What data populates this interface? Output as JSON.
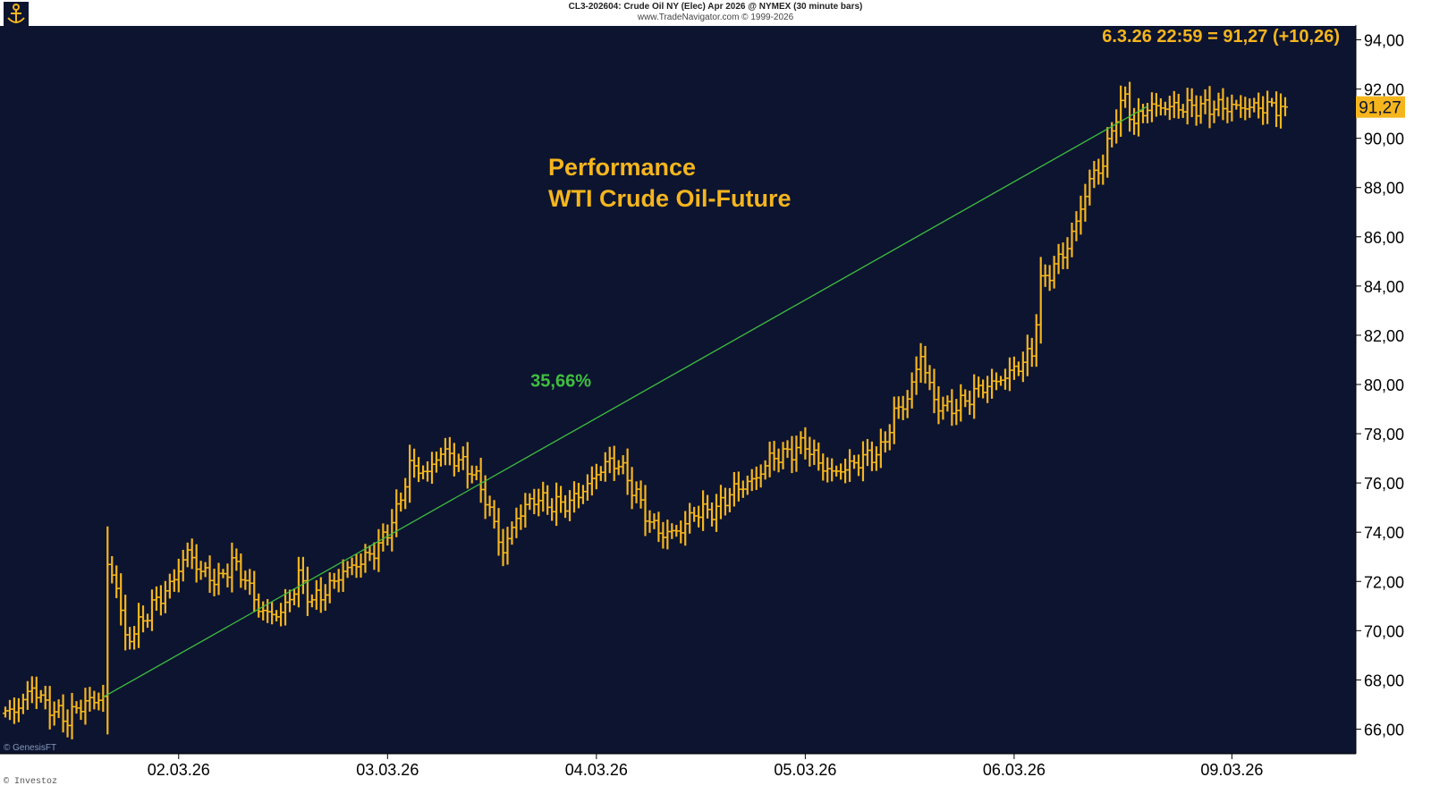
{
  "header": {
    "line1": "CL3-202604:  Crude Oil NY (Elec) Apr 2026 @ NYMEX  (30 minute bars)",
    "line2": "www.TradeNavigator.com © 1999-2026"
  },
  "watermark": "© GenesisFT",
  "footer_left": "© Investoz",
  "colors": {
    "background": "#0c1430",
    "bars": "#f5b51d",
    "trendline": "#3fbf3f",
    "axis_text": "#000000",
    "price_tag": "#f5b51d"
  },
  "chart_data": {
    "type": "ohlc",
    "title": "Performance",
    "subtitle": "WTI Crude Oil-Future",
    "info_label": "6.3.26 22:59 = 91,27 (+10,26)",
    "last_price_label": "91,27",
    "last_price": 91.27,
    "ylim": [
      65.0,
      94.6
    ],
    "y_ticks": [
      {
        "v": 66,
        "label": "66,00"
      },
      {
        "v": 68,
        "label": "68,00"
      },
      {
        "v": 70,
        "label": "70,00"
      },
      {
        "v": 72,
        "label": "72,00"
      },
      {
        "v": 74,
        "label": "74,00"
      },
      {
        "v": 76,
        "label": "76,00"
      },
      {
        "v": 78,
        "label": "78,00"
      },
      {
        "v": 80,
        "label": "80,00"
      },
      {
        "v": 82,
        "label": "82,00"
      },
      {
        "v": 84,
        "label": "84,00"
      },
      {
        "v": 86,
        "label": "86,00"
      },
      {
        "v": 88,
        "label": "88,00"
      },
      {
        "v": 90,
        "label": "90,00"
      },
      {
        "v": 92,
        "label": "92,00"
      },
      {
        "v": 94,
        "label": "94,00"
      }
    ],
    "x_axis": {
      "unit": "30-minute bars",
      "bars_visible": 289,
      "ticks": [
        {
          "bar": 39,
          "label": "02.03.26"
        },
        {
          "bar": 86,
          "label": "03.03.26"
        },
        {
          "bar": 133,
          "label": "04.03.26"
        },
        {
          "bar": 180,
          "label": "05.03.26"
        },
        {
          "bar": 227,
          "label": "06.03.26"
        },
        {
          "bar": 276,
          "label": "09.03.26"
        }
      ]
    },
    "trendline": {
      "label": "35,66%",
      "label_bar": 125,
      "label_price": 79.9,
      "start": {
        "bar": 22,
        "price": 67.3
      },
      "end": {
        "bar": 257,
        "price": 91.3
      }
    },
    "keypoints": [
      {
        "bar": 0,
        "price": 66.6
      },
      {
        "bar": 3,
        "price": 66.9
      },
      {
        "bar": 6,
        "price": 67.7
      },
      {
        "bar": 9,
        "price": 67.0
      },
      {
        "bar": 12,
        "price": 66.6
      },
      {
        "bar": 14,
        "price": 66.4
      },
      {
        "bar": 17,
        "price": 67.0
      },
      {
        "bar": 22,
        "price": 67.3
      },
      {
        "bar": 23,
        "price": 72.6
      },
      {
        "bar": 25,
        "price": 71.9
      },
      {
        "bar": 27,
        "price": 69.6
      },
      {
        "bar": 30,
        "price": 70.2
      },
      {
        "bar": 33,
        "price": 71.0
      },
      {
        "bar": 37,
        "price": 71.8
      },
      {
        "bar": 41,
        "price": 73.2
      },
      {
        "bar": 44,
        "price": 72.4
      },
      {
        "bar": 48,
        "price": 72.0
      },
      {
        "bar": 51,
        "price": 72.8
      },
      {
        "bar": 54,
        "price": 72.1
      },
      {
        "bar": 57,
        "price": 70.9
      },
      {
        "bar": 60,
        "price": 70.6
      },
      {
        "bar": 63,
        "price": 70.9
      },
      {
        "bar": 66,
        "price": 72.2
      },
      {
        "bar": 69,
        "price": 71.2
      },
      {
        "bar": 72,
        "price": 71.6
      },
      {
        "bar": 76,
        "price": 72.4
      },
      {
        "bar": 80,
        "price": 72.8
      },
      {
        "bar": 84,
        "price": 73.4
      },
      {
        "bar": 88,
        "price": 74.8
      },
      {
        "bar": 91,
        "price": 76.7
      },
      {
        "bar": 95,
        "price": 76.4
      },
      {
        "bar": 98,
        "price": 77.3
      },
      {
        "bar": 101,
        "price": 77.0
      },
      {
        "bar": 105,
        "price": 76.5
      },
      {
        "bar": 108,
        "price": 75.4
      },
      {
        "bar": 112,
        "price": 73.2
      },
      {
        "bar": 115,
        "price": 74.6
      },
      {
        "bar": 119,
        "price": 75.4
      },
      {
        "bar": 123,
        "price": 75.1
      },
      {
        "bar": 127,
        "price": 75.2
      },
      {
        "bar": 131,
        "price": 75.9
      },
      {
        "bar": 135,
        "price": 76.8
      },
      {
        "bar": 138,
        "price": 76.8
      },
      {
        "bar": 142,
        "price": 75.5
      },
      {
        "bar": 145,
        "price": 74.4
      },
      {
        "bar": 148,
        "price": 73.9
      },
      {
        "bar": 152,
        "price": 74.1
      },
      {
        "bar": 155,
        "price": 74.8
      },
      {
        "bar": 160,
        "price": 74.9
      },
      {
        "bar": 163,
        "price": 75.6
      },
      {
        "bar": 166,
        "price": 75.9
      },
      {
        "bar": 169,
        "price": 76.2
      },
      {
        "bar": 172,
        "price": 77.0
      },
      {
        "bar": 176,
        "price": 77.2
      },
      {
        "bar": 180,
        "price": 77.6
      },
      {
        "bar": 183,
        "price": 76.8
      },
      {
        "bar": 186,
        "price": 76.4
      },
      {
        "bar": 189,
        "price": 76.6
      },
      {
        "bar": 193,
        "price": 77.0
      },
      {
        "bar": 197,
        "price": 77.3
      },
      {
        "bar": 200,
        "price": 78.8
      },
      {
        "bar": 203,
        "price": 79.4
      },
      {
        "bar": 206,
        "price": 81.2
      },
      {
        "bar": 209,
        "price": 79.3
      },
      {
        "bar": 212,
        "price": 79.0
      },
      {
        "bar": 215,
        "price": 79.2
      },
      {
        "bar": 219,
        "price": 79.8
      },
      {
        "bar": 223,
        "price": 80.1
      },
      {
        "bar": 227,
        "price": 80.6
      },
      {
        "bar": 231,
        "price": 81.3
      },
      {
        "bar": 233,
        "price": 84.1
      },
      {
        "bar": 236,
        "price": 84.8
      },
      {
        "bar": 239,
        "price": 85.6
      },
      {
        "bar": 241,
        "price": 86.6
      },
      {
        "bar": 244,
        "price": 88.3
      },
      {
        "bar": 247,
        "price": 89.0
      },
      {
        "bar": 250,
        "price": 91.0
      },
      {
        "bar": 252,
        "price": 91.6
      },
      {
        "bar": 254,
        "price": 90.6
      },
      {
        "bar": 257,
        "price": 91.27
      }
    ]
  }
}
